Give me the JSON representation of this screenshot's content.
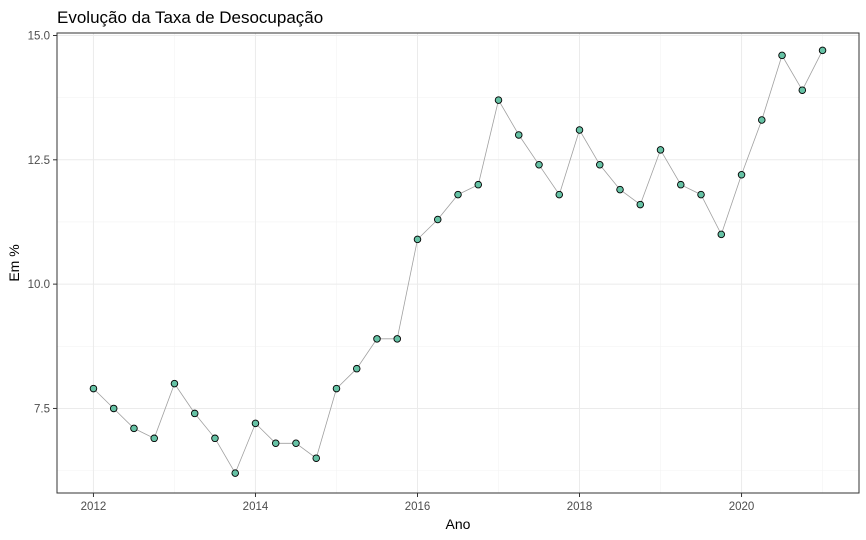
{
  "chart_data": {
    "type": "line",
    "title": "Evolução da Taxa de Desocupação",
    "xlabel": "Ano",
    "ylabel": "Em %",
    "xlim": [
      2011.55,
      2021.45
    ],
    "ylim": [
      5.8,
      15.05
    ],
    "x_ticks": [
      2012,
      2014,
      2016,
      2018,
      2020
    ],
    "x_tick_labels": [
      "2012",
      "2014",
      "2016",
      "2018",
      "2020"
    ],
    "y_ticks": [
      7.5,
      10.0,
      12.5,
      15.0
    ],
    "y_tick_labels": [
      "7.5",
      "10.0",
      "12.5",
      "15.0"
    ],
    "grid": true,
    "point_color": "#66c2a5",
    "line_color": "#a0a0a0",
    "series": [
      {
        "x": [
          2012.0,
          2012.25,
          2012.5,
          2012.75,
          2013.0,
          2013.25,
          2013.5,
          2013.75,
          2014.0,
          2014.25,
          2014.5,
          2014.75,
          2015.0,
          2015.25,
          2015.5,
          2015.75,
          2016.0,
          2016.25,
          2016.5,
          2016.75,
          2017.0,
          2017.25,
          2017.5,
          2017.75,
          2018.0,
          2018.25,
          2018.5,
          2018.75,
          2019.0,
          2019.25,
          2019.5,
          2019.75,
          2020.0,
          2020.25,
          2020.5,
          2020.75,
          2021.0
        ],
        "values": [
          7.9,
          7.5,
          7.1,
          6.9,
          8.0,
          7.4,
          6.9,
          6.2,
          7.2,
          6.8,
          6.8,
          6.5,
          7.9,
          8.3,
          8.9,
          8.9,
          10.9,
          11.3,
          11.8,
          12.0,
          13.7,
          13.0,
          12.4,
          11.8,
          13.1,
          12.4,
          11.9,
          11.6,
          12.7,
          12.0,
          11.8,
          11.0,
          12.2,
          13.3,
          14.6,
          13.9,
          14.7
        ]
      }
    ]
  }
}
